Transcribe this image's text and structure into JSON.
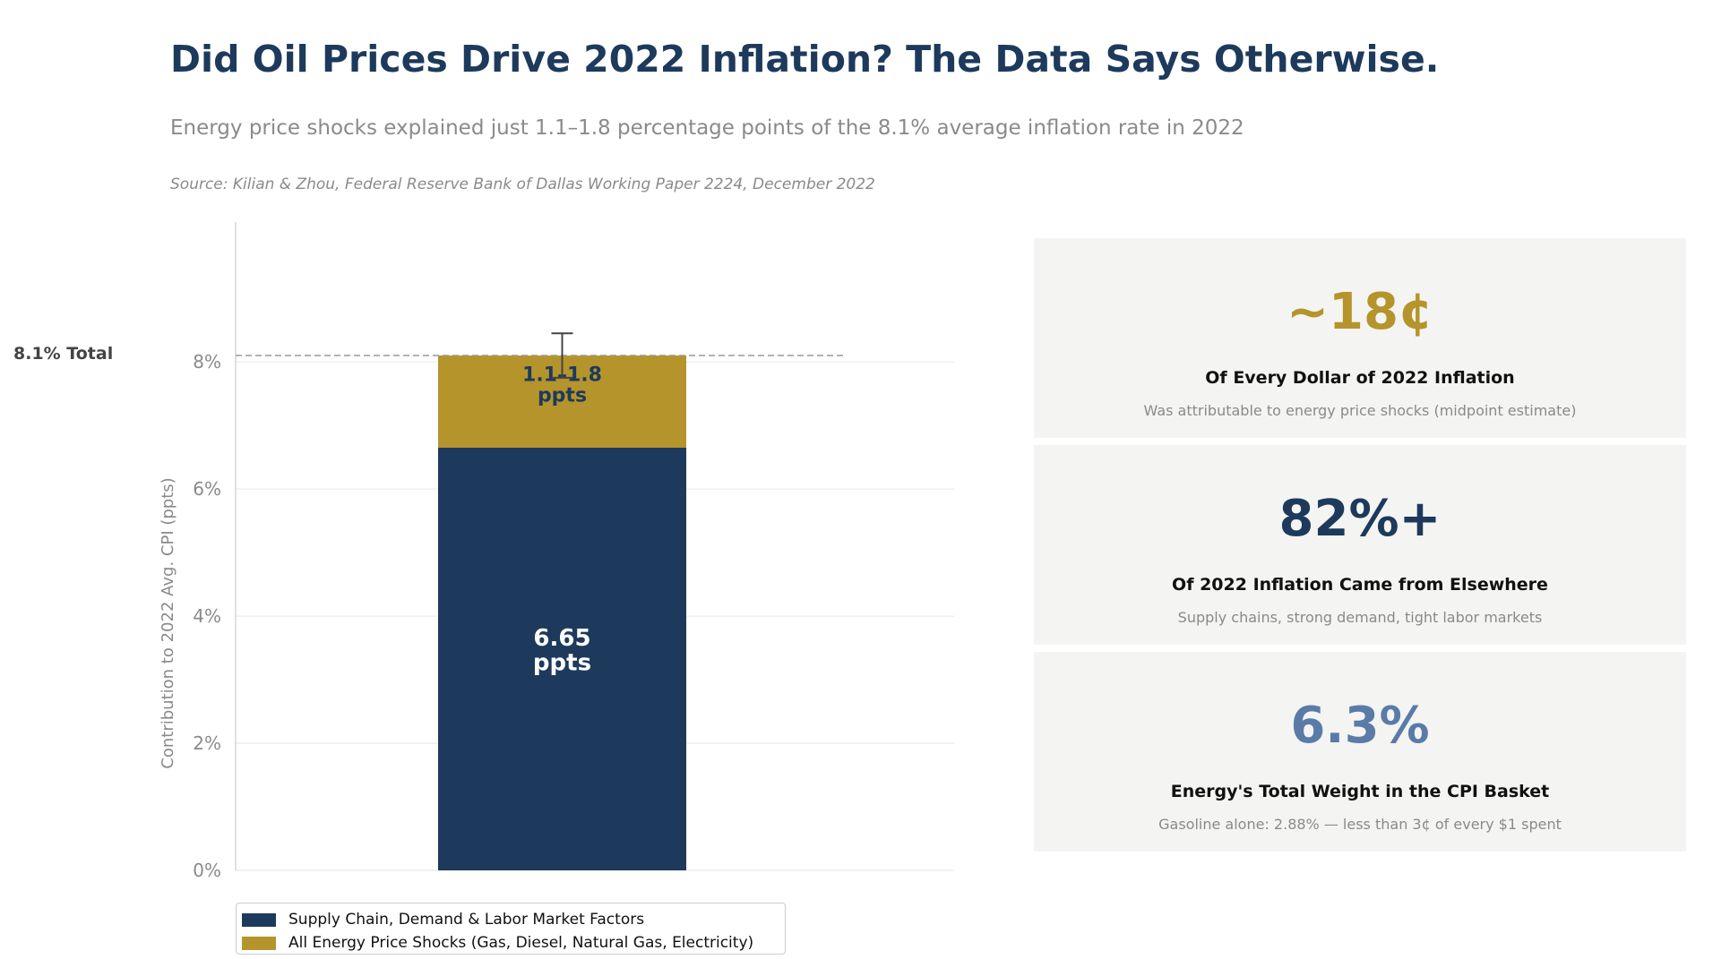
{
  "header": {
    "title": "Did Oil Prices Drive 2022 Inflation? The Data Says Otherwise.",
    "subtitle": "Energy price shocks explained just 1.1–1.8 percentage points of the 8.1% average inflation rate in 2022",
    "source": "Source: Kilian & Zhou, Federal Reserve Bank of Dallas Working Paper 2224, December 2022"
  },
  "chart_data": {
    "type": "bar",
    "stacked": true,
    "ylabel": "Contribution to 2022 Avg. CPI (ppts)",
    "ylim": [
      0,
      10.2
    ],
    "yticks": [
      0,
      2,
      4,
      6,
      8
    ],
    "ytick_labels": [
      "0%",
      "2%",
      "4%",
      "6%",
      "8%"
    ],
    "grid": true,
    "reference_line": {
      "value": 8.1,
      "label": "8.1% Total"
    },
    "series": [
      {
        "name": "Supply Chain, Demand & Labor Market Factors",
        "value": 6.65,
        "label": "6.65\nppts",
        "color": "#1d3a5c",
        "label_color": "#ffffff"
      },
      {
        "name": "All Energy Price Shocks (Gas, Diesel, Natural Gas, Electricity)",
        "value": 1.45,
        "range": [
          1.1,
          1.8
        ],
        "label": "1.1–1.8\nppts",
        "color": "#b5942b",
        "label_color": "#1d3a5c"
      }
    ],
    "error_bar": {
      "center": 8.1,
      "low": 7.75,
      "high": 8.45
    },
    "legend_position": "bottom-left"
  },
  "cards": [
    {
      "value": "~18¢",
      "value_color": "#b5942b",
      "heading": "Of Every Dollar of 2022 Inflation",
      "sub": "Was attributable to energy price shocks (midpoint estimate)"
    },
    {
      "value": "82%+",
      "value_color": "#1d3a5c",
      "heading": "Of 2022 Inflation Came from Elsewhere",
      "sub": "Supply chains, strong demand, tight labor markets"
    },
    {
      "value": "6.3%",
      "value_color": "#5a7ba8",
      "heading": "Energy's Total Weight in the CPI Basket",
      "sub": "Gasoline alone: 2.88% — less than 3¢ of every $1 spent"
    }
  ]
}
